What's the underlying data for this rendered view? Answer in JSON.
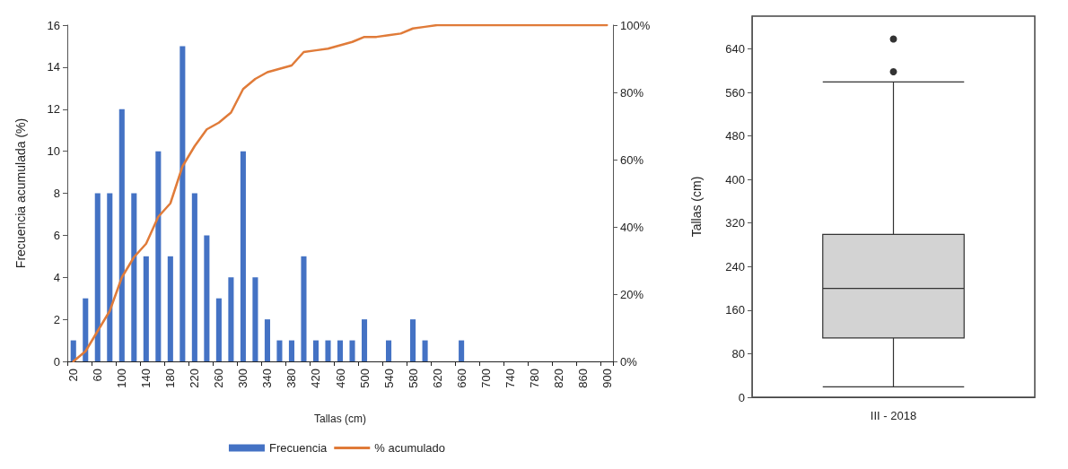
{
  "chart_data": [
    {
      "type": "bar",
      "xlabel": "Tallas (cm)",
      "ylabel": "Frecuencia acumulada (%)",
      "categories": [
        "20",
        null,
        "60",
        null,
        "100",
        null,
        "140",
        null,
        "180",
        null,
        "220",
        null,
        "260",
        null,
        "300",
        null,
        "340",
        null,
        "380",
        null,
        "420",
        null,
        "460",
        null,
        "500",
        null,
        "540",
        null,
        "580",
        null,
        "620",
        null,
        "660",
        null,
        "700",
        null,
        "740",
        null,
        "780",
        null,
        "820",
        null,
        "860",
        null,
        "900"
      ],
      "series": [
        {
          "name": "Frecuencia",
          "type": "bar",
          "color": "#4472c4",
          "values": [
            1,
            3,
            8,
            8,
            12,
            8,
            5,
            10,
            5,
            15,
            8,
            6,
            3,
            4,
            10,
            4,
            2,
            1,
            1,
            5,
            1,
            1,
            1,
            1,
            2,
            null,
            1,
            null,
            2,
            1,
            null,
            null,
            1,
            null,
            null,
            null,
            null,
            null,
            null,
            null,
            null,
            null,
            null,
            null,
            null
          ]
        },
        {
          "name": "% acumulado",
          "type": "line",
          "axis": "y2",
          "color": "#e07b39",
          "values": [
            0,
            3,
            9,
            15,
            25,
            31,
            35,
            43,
            47,
            58,
            64,
            69,
            71,
            74,
            81,
            84,
            86,
            87,
            88,
            92,
            92.5,
            93,
            94,
            95,
            96.5,
            96.5,
            97,
            97.5,
            99,
            99.5,
            100,
            100,
            100,
            100,
            100,
            100,
            100,
            100,
            100,
            100,
            100,
            100,
            100,
            100,
            100
          ]
        }
      ],
      "ylim": [
        0,
        16
      ],
      "yticks": [
        0,
        2,
        4,
        6,
        8,
        10,
        12,
        14,
        16
      ],
      "y2lim": [
        0,
        100
      ],
      "y2ticks": [
        {
          "value": 0,
          "label": "0%"
        },
        {
          "value": 20,
          "label": "20%"
        },
        {
          "value": 40,
          "label": "40%"
        },
        {
          "value": 60,
          "label": "60%"
        },
        {
          "value": 80,
          "label": "80%"
        },
        {
          "value": 100,
          "label": "100%"
        }
      ],
      "legend": "bottom",
      "marker": "none",
      "line_style": "solid"
    },
    {
      "type": "box",
      "ylabel": "Tallas (cm)",
      "categories": [
        "III - 2018"
      ],
      "color": "#d3d3d3",
      "boxes": [
        {
          "low": 19,
          "q1": 109,
          "median": 200,
          "q3": 299,
          "high": 579,
          "outliers": [
            598,
            658
          ]
        }
      ],
      "ylim": [
        0,
        700
      ],
      "yticks": [
        0,
        80,
        160,
        240,
        320,
        400,
        480,
        560,
        640
      ]
    }
  ]
}
